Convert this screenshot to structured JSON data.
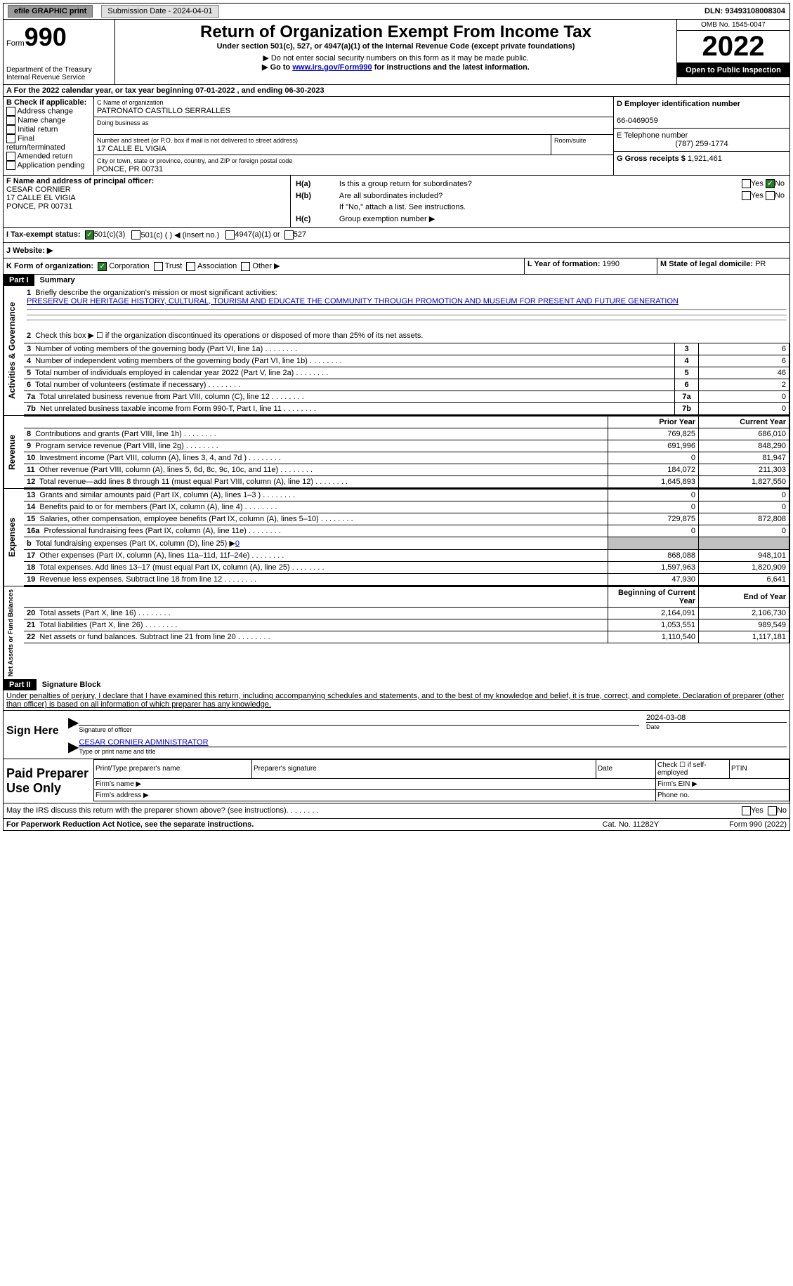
{
  "topbar": {
    "efile": "efile GRAPHIC print",
    "submission": "Submission Date - 2024-04-01",
    "dln": "DLN: 93493108008304"
  },
  "header": {
    "form_label": "Form",
    "form_num": "990",
    "dept": "Department of the Treasury",
    "irs": "Internal Revenue Service",
    "title": "Return of Organization Exempt From Income Tax",
    "subtitle": "Under section 501(c), 527, or 4947(a)(1) of the Internal Revenue Code (except private foundations)",
    "note1": "▶ Do not enter social security numbers on this form as it may be made public.",
    "note2_pre": "▶ Go to ",
    "note2_link": "www.irs.gov/Form990",
    "note2_post": " for instructions and the latest information.",
    "omb": "OMB No. 1545-0047",
    "year": "2022",
    "open": "Open to Public Inspection"
  },
  "sectionA": {
    "line": "A For the 2022 calendar year, or tax year beginning 07-01-2022    , and ending 06-30-2023"
  },
  "sectionB": {
    "title": "B Check if applicable:",
    "opts": [
      "Address change",
      "Name change",
      "Initial return",
      "Final return/terminated",
      "Amended return",
      "Application pending"
    ]
  },
  "sectionC": {
    "label": "C Name of organization",
    "name": "PATRONATO CASTILLO SERRALLES",
    "dba": "Doing business as",
    "addr_label": "Number and street (or P.O. box if mail is not delivered to street address)",
    "addr": "17 CALLE EL VIGIA",
    "room": "Room/suite",
    "city_label": "City or town, state or province, country, and ZIP or foreign postal code",
    "city": "PONCE, PR   00731"
  },
  "sectionD": {
    "label": "D Employer identification number",
    "ein": "66-0469059"
  },
  "sectionE": {
    "label": "E Telephone number",
    "phone": "(787) 259-1774"
  },
  "sectionG": {
    "label": "G Gross receipts $",
    "val": "1,921,461"
  },
  "sectionF": {
    "label": "F Name and address of principal officer:",
    "name": "CESAR CORNIER",
    "addr": "17 CALLE EL VIGIA",
    "city": "PONCE, PR  00731"
  },
  "sectionH": {
    "a": "Is this a group return for subordinates?",
    "b": "Are all subordinates included?",
    "note": "If \"No,\" attach a list. See instructions.",
    "c": "Group exemption number ▶"
  },
  "sectionI": {
    "label": "I   Tax-exempt status:",
    "o1": "501(c)(3)",
    "o2": "501(c) (  ) ◀ (insert no.)",
    "o3": "4947(a)(1) or",
    "o4": "527"
  },
  "sectionJ": {
    "label": "J   Website: ▶"
  },
  "sectionK": {
    "label": "K Form of organization:",
    "o1": "Corporation",
    "o2": "Trust",
    "o3": "Association",
    "o4": "Other ▶"
  },
  "sectionL": {
    "label": "L Year of formation:",
    "val": "1990"
  },
  "sectionM": {
    "label": "M State of legal domicile:",
    "val": "PR"
  },
  "part1": {
    "num": "Part I",
    "title": "Summary",
    "q1": "Briefly describe the organization's mission or most significant activities:",
    "mission": "PRESERVE OUR HERITAGE HISTORY, CULTURAL, TOURISM AND EDUCATE THE COMMUNITY THROUGH PROMOTION AND MUSEUM FOR PRESENT AND FUTURE GENERATION",
    "q2": "Check this box ▶ ☐  if the organization discontinued its operations or disposed of more than 25% of its net assets.",
    "rows_ag": [
      {
        "n": "3",
        "t": "Number of voting members of the governing body (Part VI, line 1a)",
        "v": "6"
      },
      {
        "n": "4",
        "t": "Number of independent voting members of the governing body (Part VI, line 1b)",
        "v": "6"
      },
      {
        "n": "5",
        "t": "Total number of individuals employed in calendar year 2022 (Part V, line 2a)",
        "v": "46"
      },
      {
        "n": "6",
        "t": "Total number of volunteers (estimate if necessary)",
        "v": "2"
      },
      {
        "n": "7a",
        "t": "Total unrelated business revenue from Part VIII, column (C), line 12",
        "v": "0"
      },
      {
        "n": "7b",
        "t": "Net unrelated business taxable income from Form 990-T, Part I, line 11",
        "v": "0"
      }
    ],
    "col_prior": "Prior Year",
    "col_curr": "Current Year",
    "rev": [
      {
        "n": "8",
        "t": "Contributions and grants (Part VIII, line 1h)",
        "p": "769,825",
        "c": "686,010"
      },
      {
        "n": "9",
        "t": "Program service revenue (Part VIII, line 2g)",
        "p": "691,996",
        "c": "848,290"
      },
      {
        "n": "10",
        "t": "Investment income (Part VIII, column (A), lines 3, 4, and 7d )",
        "p": "0",
        "c": "81,947"
      },
      {
        "n": "11",
        "t": "Other revenue (Part VIII, column (A), lines 5, 6d, 8c, 9c, 10c, and 11e)",
        "p": "184,072",
        "c": "211,303"
      },
      {
        "n": "12",
        "t": "Total revenue—add lines 8 through 11 (must equal Part VIII, column (A), line 12)",
        "p": "1,645,893",
        "c": "1,827,550"
      }
    ],
    "exp": [
      {
        "n": "13",
        "t": "Grants and similar amounts paid (Part IX, column (A), lines 1–3 )",
        "p": "0",
        "c": "0"
      },
      {
        "n": "14",
        "t": "Benefits paid to or for members (Part IX, column (A), line 4)",
        "p": "0",
        "c": "0"
      },
      {
        "n": "15",
        "t": "Salaries, other compensation, employee benefits (Part IX, column (A), lines 5–10)",
        "p": "729,875",
        "c": "872,808"
      },
      {
        "n": "16a",
        "t": "Professional fundraising fees (Part IX, column (A), line 11e)",
        "p": "0",
        "c": "0"
      }
    ],
    "exp_b": {
      "n": "b",
      "t": "Total fundraising expenses (Part IX, column (D), line 25) ▶",
      "v": "0"
    },
    "exp2": [
      {
        "n": "17",
        "t": "Other expenses (Part IX, column (A), lines 11a–11d, 11f–24e)",
        "p": "868,088",
        "c": "948,101"
      },
      {
        "n": "18",
        "t": "Total expenses. Add lines 13–17 (must equal Part IX, column (A), line 25)",
        "p": "1,597,963",
        "c": "1,820,909"
      },
      {
        "n": "19",
        "t": "Revenue less expenses. Subtract line 18 from line 12",
        "p": "47,930",
        "c": "6,641"
      }
    ],
    "col_begin": "Beginning of Current Year",
    "col_end": "End of Year",
    "net": [
      {
        "n": "20",
        "t": "Total assets (Part X, line 16)",
        "p": "2,164,091",
        "c": "2,106,730"
      },
      {
        "n": "21",
        "t": "Total liabilities (Part X, line 26)",
        "p": "1,053,551",
        "c": "989,549"
      },
      {
        "n": "22",
        "t": "Net assets or fund balances. Subtract line 21 from line 20",
        "p": "1,110,540",
        "c": "1,117,181"
      }
    ]
  },
  "part2": {
    "num": "Part II",
    "title": "Signature Block",
    "decl": "Under penalties of perjury, I declare that I have examined this return, including accompanying schedules and statements, and to the best of my knowledge and belief, it is true, correct, and complete. Declaration of preparer (other than officer) is based on all information of which preparer has any knowledge.",
    "sign_here": "Sign Here",
    "sig_officer": "Signature of officer",
    "date": "2024-03-08",
    "date_lbl": "Date",
    "name": "CESAR CORNIER  ADMINISTRATOR",
    "name_lbl": "Type or print name and title",
    "paid": "Paid Preparer Use Only",
    "pp_name": "Print/Type preparer's name",
    "pp_sig": "Preparer's signature",
    "pp_date": "Date",
    "pp_self": "Check ☐ if self-employed",
    "pp_ptin": "PTIN",
    "firm_name": "Firm's name    ▶",
    "firm_ein": "Firm's EIN ▶",
    "firm_addr": "Firm's address ▶",
    "phone": "Phone no.",
    "discuss": "May the IRS discuss this return with the preparer shown above? (see instructions)",
    "footer_l": "For Paperwork Reduction Act Notice, see the separate instructions.",
    "footer_m": "Cat. No. 11282Y",
    "footer_r": "Form 990 (2022)"
  }
}
